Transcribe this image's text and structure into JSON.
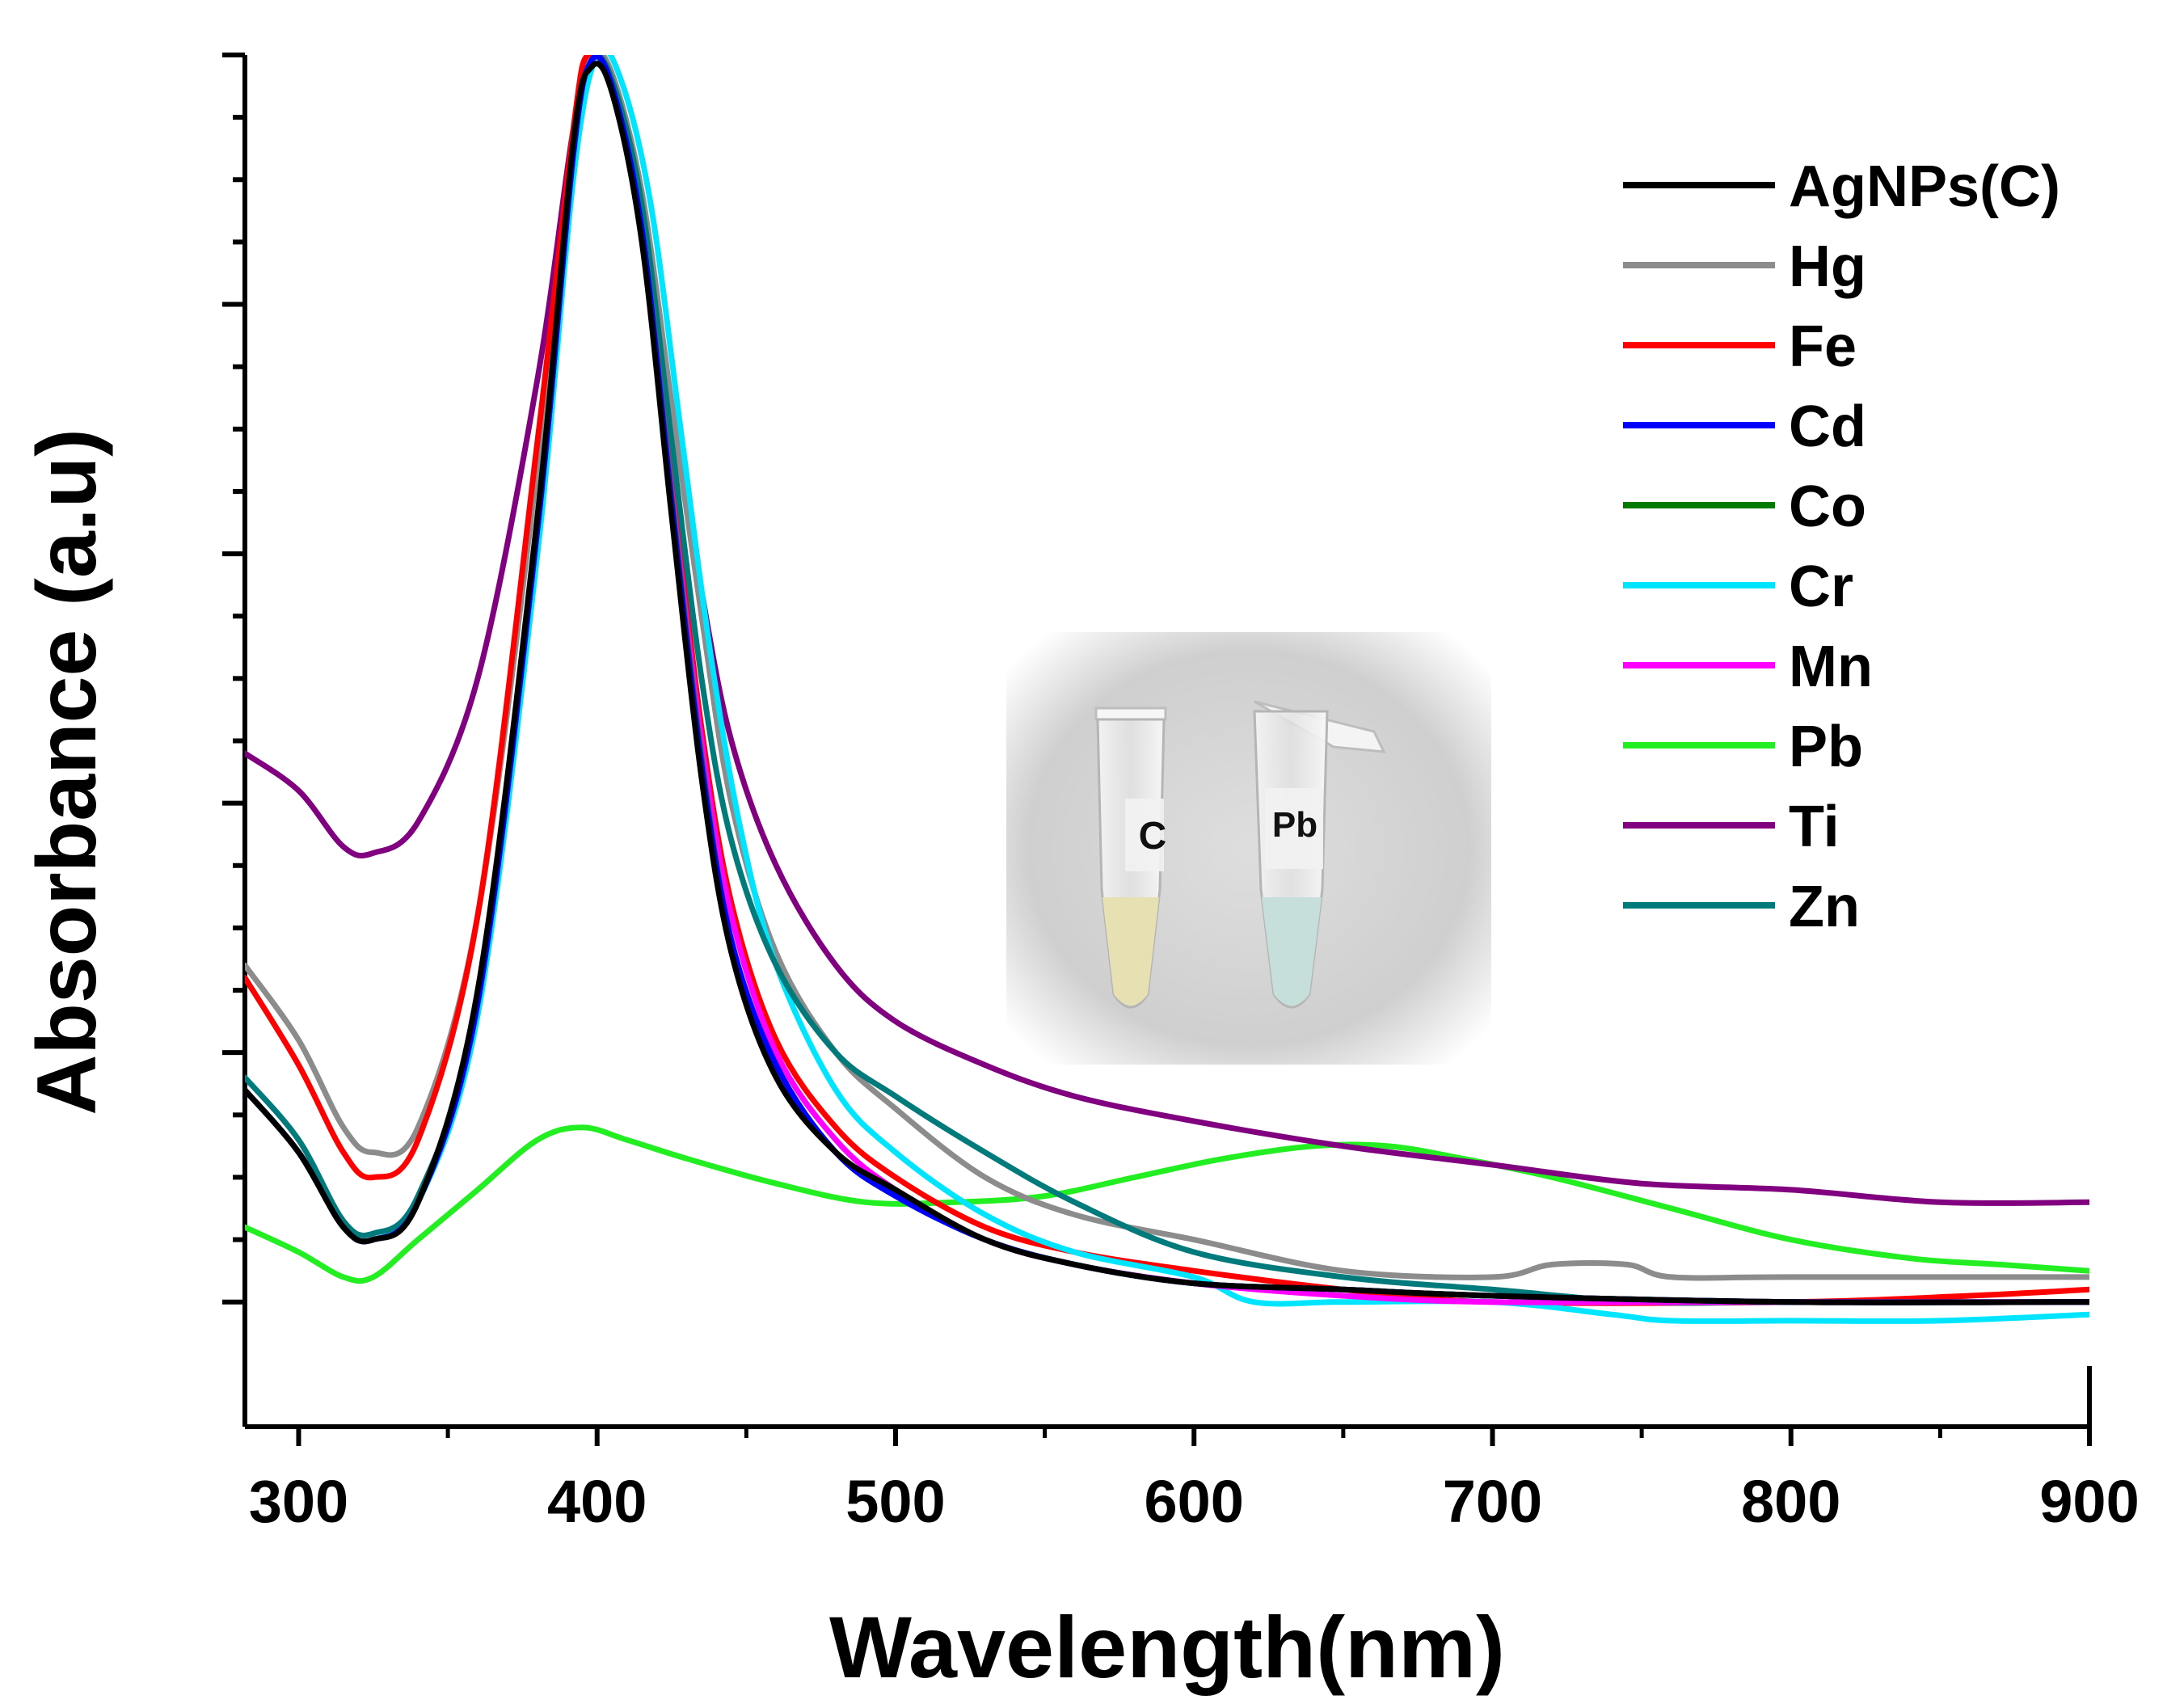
{
  "chart_data": {
    "type": "line",
    "title": "",
    "xlabel": "Wavelength(nm)",
    "ylabel": "Absorbance (a.u)",
    "xlim": [
      282,
      900
    ],
    "ylim": [
      -0.1,
      1.0
    ],
    "xticks": [
      300,
      400,
      500,
      600,
      700,
      800,
      900
    ],
    "x_minor_step": 50,
    "y_major": [
      0.0,
      0.2,
      0.4,
      0.6,
      0.8,
      1.0
    ],
    "y_minor_step": 0.05,
    "grid": false,
    "legend_position": "top-right",
    "series": [
      {
        "name": "AgNPs(C)",
        "color": "#000000",
        "points": [
          [
            282,
            0.17
          ],
          [
            300,
            0.12
          ],
          [
            315,
            0.06
          ],
          [
            325,
            0.05
          ],
          [
            340,
            0.08
          ],
          [
            360,
            0.25
          ],
          [
            380,
            0.63
          ],
          [
            392,
            0.93
          ],
          [
            398,
            0.99
          ],
          [
            405,
            0.97
          ],
          [
            415,
            0.85
          ],
          [
            425,
            0.63
          ],
          [
            435,
            0.42
          ],
          [
            445,
            0.28
          ],
          [
            460,
            0.18
          ],
          [
            480,
            0.12
          ],
          [
            500,
            0.09
          ],
          [
            530,
            0.05
          ],
          [
            560,
            0.03
          ],
          [
            600,
            0.015
          ],
          [
            650,
            0.01
          ],
          [
            700,
            0.005
          ],
          [
            800,
            0.0
          ],
          [
            900,
            0.0
          ]
        ]
      },
      {
        "name": "Hg",
        "color": "#8c8c8c",
        "points": [
          [
            282,
            0.27
          ],
          [
            300,
            0.21
          ],
          [
            315,
            0.14
          ],
          [
            325,
            0.12
          ],
          [
            340,
            0.14
          ],
          [
            360,
            0.31
          ],
          [
            380,
            0.67
          ],
          [
            392,
            0.94
          ],
          [
            398,
            1.0
          ],
          [
            405,
            0.985
          ],
          [
            415,
            0.89
          ],
          [
            425,
            0.72
          ],
          [
            435,
            0.55
          ],
          [
            445,
            0.4
          ],
          [
            460,
            0.28
          ],
          [
            480,
            0.2
          ],
          [
            500,
            0.155
          ],
          [
            530,
            0.1
          ],
          [
            560,
            0.07
          ],
          [
            600,
            0.05
          ],
          [
            650,
            0.025
          ],
          [
            700,
            0.02
          ],
          [
            720,
            0.03
          ],
          [
            745,
            0.03
          ],
          [
            760,
            0.02
          ],
          [
            800,
            0.02
          ],
          [
            900,
            0.02
          ]
        ]
      },
      {
        "name": "Fe",
        "color": "#ff0000",
        "points": [
          [
            282,
            0.26
          ],
          [
            300,
            0.19
          ],
          [
            315,
            0.12
          ],
          [
            325,
            0.1
          ],
          [
            340,
            0.13
          ],
          [
            360,
            0.31
          ],
          [
            380,
            0.69
          ],
          [
            392,
            0.94
          ],
          [
            397,
            1.0
          ],
          [
            405,
            0.97
          ],
          [
            415,
            0.86
          ],
          [
            425,
            0.66
          ],
          [
            435,
            0.46
          ],
          [
            445,
            0.32
          ],
          [
            460,
            0.21
          ],
          [
            480,
            0.14
          ],
          [
            500,
            0.1
          ],
          [
            530,
            0.06
          ],
          [
            560,
            0.04
          ],
          [
            600,
            0.025
          ],
          [
            650,
            0.01
          ],
          [
            700,
            0.0
          ],
          [
            800,
            0.0
          ],
          [
            860,
            0.005
          ],
          [
            900,
            0.01
          ]
        ]
      },
      {
        "name": "Cd",
        "color": "#0000ff",
        "points": [
          [
            282,
            0.17
          ],
          [
            300,
            0.12
          ],
          [
            315,
            0.06
          ],
          [
            325,
            0.05
          ],
          [
            340,
            0.08
          ],
          [
            360,
            0.24
          ],
          [
            380,
            0.62
          ],
          [
            392,
            0.92
          ],
          [
            398,
            0.995
          ],
          [
            405,
            0.975
          ],
          [
            415,
            0.86
          ],
          [
            425,
            0.64
          ],
          [
            435,
            0.43
          ],
          [
            445,
            0.29
          ],
          [
            460,
            0.19
          ],
          [
            480,
            0.12
          ],
          [
            500,
            0.085
          ],
          [
            530,
            0.05
          ],
          [
            560,
            0.03
          ],
          [
            600,
            0.015
          ],
          [
            650,
            0.01
          ],
          [
            700,
            0.005
          ],
          [
            800,
            0.0
          ],
          [
            900,
            0.0
          ]
        ]
      },
      {
        "name": "Co",
        "color": "#007a00",
        "points": [
          [
            282,
            0.17
          ],
          [
            300,
            0.12
          ],
          [
            315,
            0.06
          ],
          [
            325,
            0.05
          ],
          [
            340,
            0.08
          ],
          [
            360,
            0.24
          ],
          [
            380,
            0.62
          ],
          [
            392,
            0.92
          ],
          [
            398,
            0.995
          ],
          [
            405,
            0.975
          ],
          [
            415,
            0.86
          ],
          [
            425,
            0.645
          ],
          [
            435,
            0.435
          ],
          [
            445,
            0.29
          ],
          [
            460,
            0.19
          ],
          [
            480,
            0.12
          ],
          [
            500,
            0.085
          ],
          [
            530,
            0.05
          ],
          [
            560,
            0.03
          ],
          [
            600,
            0.015
          ],
          [
            650,
            0.01
          ],
          [
            700,
            0.005
          ],
          [
            800,
            0.0
          ],
          [
            900,
            0.0
          ]
        ]
      },
      {
        "name": "Cr",
        "color": "#00e5ff",
        "points": [
          [
            282,
            0.17
          ],
          [
            300,
            0.12
          ],
          [
            315,
            0.06
          ],
          [
            325,
            0.05
          ],
          [
            340,
            0.08
          ],
          [
            360,
            0.23
          ],
          [
            380,
            0.6
          ],
          [
            392,
            0.9
          ],
          [
            400,
            1.0
          ],
          [
            408,
            0.98
          ],
          [
            418,
            0.88
          ],
          [
            428,
            0.7
          ],
          [
            438,
            0.52
          ],
          [
            448,
            0.38
          ],
          [
            460,
            0.27
          ],
          [
            480,
            0.17
          ],
          [
            500,
            0.12
          ],
          [
            530,
            0.07
          ],
          [
            560,
            0.04
          ],
          [
            600,
            0.02
          ],
          [
            620,
            0.0
          ],
          [
            650,
            0.0
          ],
          [
            700,
            0.0
          ],
          [
            740,
            -0.01
          ],
          [
            760,
            -0.015
          ],
          [
            800,
            -0.015
          ],
          [
            850,
            -0.015
          ],
          [
            900,
            -0.01
          ]
        ]
      },
      {
        "name": "Mn",
        "color": "#ff00ff",
        "points": [
          [
            282,
            0.17
          ],
          [
            300,
            0.12
          ],
          [
            315,
            0.06
          ],
          [
            325,
            0.05
          ],
          [
            340,
            0.08
          ],
          [
            360,
            0.24
          ],
          [
            380,
            0.62
          ],
          [
            392,
            0.92
          ],
          [
            398,
            0.995
          ],
          [
            405,
            0.975
          ],
          [
            415,
            0.86
          ],
          [
            425,
            0.65
          ],
          [
            435,
            0.45
          ],
          [
            445,
            0.31
          ],
          [
            460,
            0.2
          ],
          [
            480,
            0.13
          ],
          [
            500,
            0.09
          ],
          [
            530,
            0.05
          ],
          [
            560,
            0.03
          ],
          [
            600,
            0.015
          ],
          [
            650,
            0.005
          ],
          [
            700,
            0.0
          ],
          [
            800,
            0.0
          ],
          [
            900,
            0.0
          ]
        ]
      },
      {
        "name": "Pb",
        "color": "#22ee22",
        "points": [
          [
            282,
            0.06
          ],
          [
            300,
            0.04
          ],
          [
            315,
            0.02
          ],
          [
            325,
            0.02
          ],
          [
            340,
            0.05
          ],
          [
            360,
            0.09
          ],
          [
            380,
            0.13
          ],
          [
            395,
            0.14
          ],
          [
            410,
            0.13
          ],
          [
            430,
            0.115
          ],
          [
            460,
            0.095
          ],
          [
            490,
            0.08
          ],
          [
            520,
            0.08
          ],
          [
            550,
            0.085
          ],
          [
            580,
            0.1
          ],
          [
            610,
            0.115
          ],
          [
            640,
            0.125
          ],
          [
            665,
            0.125
          ],
          [
            690,
            0.115
          ],
          [
            720,
            0.1
          ],
          [
            760,
            0.075
          ],
          [
            800,
            0.05
          ],
          [
            840,
            0.035
          ],
          [
            870,
            0.03
          ],
          [
            900,
            0.025
          ]
        ]
      },
      {
        "name": "Ti",
        "color": "#800080",
        "points": [
          [
            282,
            0.44
          ],
          [
            300,
            0.41
          ],
          [
            315,
            0.365
          ],
          [
            325,
            0.36
          ],
          [
            340,
            0.385
          ],
          [
            360,
            0.5
          ],
          [
            380,
            0.74
          ],
          [
            392,
            0.94
          ],
          [
            398,
            0.995
          ],
          [
            405,
            0.975
          ],
          [
            415,
            0.88
          ],
          [
            425,
            0.72
          ],
          [
            435,
            0.57
          ],
          [
            445,
            0.45
          ],
          [
            460,
            0.35
          ],
          [
            480,
            0.27
          ],
          [
            500,
            0.225
          ],
          [
            530,
            0.19
          ],
          [
            560,
            0.165
          ],
          [
            600,
            0.145
          ],
          [
            650,
            0.125
          ],
          [
            700,
            0.11
          ],
          [
            750,
            0.095
          ],
          [
            800,
            0.09
          ],
          [
            850,
            0.08
          ],
          [
            900,
            0.08
          ]
        ]
      },
      {
        "name": "Zn",
        "color": "#007a7a",
        "points": [
          [
            282,
            0.18
          ],
          [
            300,
            0.13
          ],
          [
            315,
            0.065
          ],
          [
            325,
            0.055
          ],
          [
            340,
            0.085
          ],
          [
            360,
            0.24
          ],
          [
            380,
            0.62
          ],
          [
            392,
            0.92
          ],
          [
            398,
            0.995
          ],
          [
            405,
            0.98
          ],
          [
            415,
            0.88
          ],
          [
            425,
            0.69
          ],
          [
            435,
            0.5
          ],
          [
            445,
            0.37
          ],
          [
            460,
            0.27
          ],
          [
            480,
            0.2
          ],
          [
            500,
            0.165
          ],
          [
            530,
            0.12
          ],
          [
            560,
            0.08
          ],
          [
            600,
            0.04
          ],
          [
            650,
            0.02
          ],
          [
            700,
            0.01
          ],
          [
            750,
            0.0
          ],
          [
            800,
            0.0
          ],
          [
            900,
            0.0
          ]
        ]
      }
    ]
  },
  "inset_photo": {
    "tube_labels": [
      "C",
      "Pb"
    ],
    "backdrop_color": "#d0d0d0",
    "liquid_colors": [
      "#e6e0b2",
      "#c6dfda"
    ]
  }
}
